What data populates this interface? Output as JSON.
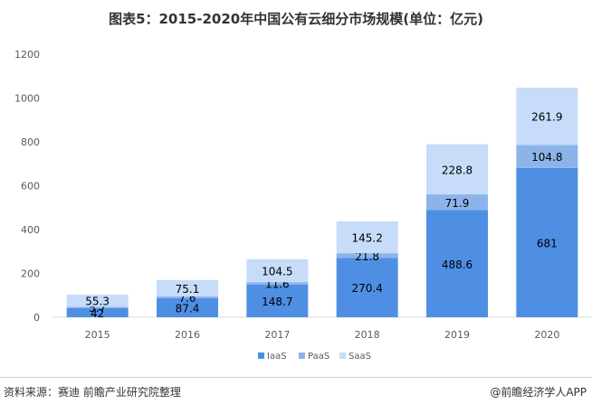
{
  "title": "图表5：2015-2020年中国公有云细分市场规模(单位：亿元)",
  "footer": {
    "source": "资料来源：赛迪 前瞻产业研究院整理",
    "brand": "@前瞻经济学人APP"
  },
  "colors": {
    "IaaS": "#4e8fe3",
    "PaaS": "#8cb4ea",
    "SaaS": "#c6dcf8"
  },
  "chart_data": {
    "type": "bar",
    "stacked": true,
    "categories": [
      "2015",
      "2016",
      "2017",
      "2018",
      "2019",
      "2020"
    ],
    "series": [
      {
        "name": "IaaS",
        "values": [
          42,
          87.4,
          148.7,
          270.4,
          488.6,
          681
        ]
      },
      {
        "name": "PaaS",
        "values": [
          5.7,
          7.6,
          11.6,
          21.8,
          71.9,
          104.8
        ]
      },
      {
        "name": "SaaS",
        "values": [
          55.3,
          75.1,
          104.5,
          145.2,
          228.8,
          261.9
        ]
      }
    ],
    "data_labels": [
      [
        "42",
        "87.4",
        "148.7",
        "270.4",
        "488.6",
        "681"
      ],
      [
        "5.7",
        "7.6",
        "11.6",
        "21.8",
        "71.9",
        "104.8"
      ],
      [
        "55.3",
        "75.1",
        "104.5",
        "145.2",
        "228.8",
        "261.9"
      ]
    ],
    "ylim": [
      0,
      1200
    ],
    "yticks": [
      "0",
      "200",
      "400",
      "600",
      "800",
      "1000",
      "1200"
    ],
    "grid": false,
    "legend": "bottom-center"
  }
}
